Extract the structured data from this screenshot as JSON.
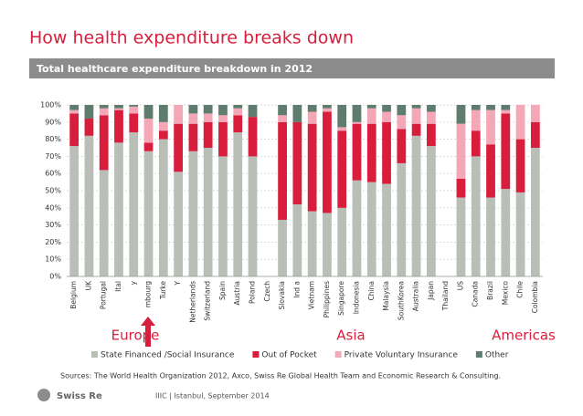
{
  "chart_data": {
    "type": "stacked_bar",
    "title": "How health expenditure breaks down",
    "subtitle": "Total healthcare expenditure breakdown in 2012",
    "categories": [
      "Belgium",
      "UK",
      "Portugal",
      "Ital",
      "y",
      "mbourg",
      "Turke",
      "Y",
      "Netherlands",
      "Switzerland",
      "Spain",
      "Austria",
      "Poland",
      "Czech",
      "Slovakia",
      "Ind a",
      "Vietnam",
      "Philippines",
      "Singapore",
      "Indonesia",
      "China",
      "Malaysia",
      "SouthKorea",
      "Australia",
      "Japan",
      "Thailand",
      "US",
      "Canada",
      "Brazil",
      "Mexico",
      "Chile",
      "Colombia"
    ],
    "series": [
      {
        "name": "State Financed /Social Insurance",
        "color": "#b9bfb7",
        "values": [
          76,
          82,
          62,
          78,
          84,
          73,
          80,
          61,
          73,
          75,
          70,
          84,
          70,
          null,
          33,
          42,
          38,
          37,
          40,
          56,
          55,
          54,
          66,
          82,
          76,
          null,
          46,
          70,
          46,
          51,
          49,
          75
        ]
      },
      {
        "name": "Out of Pocket",
        "color": "#d81e3c",
        "values": [
          19,
          10,
          32,
          19,
          11,
          5,
          5,
          28,
          16,
          15,
          20,
          10,
          23,
          null,
          57,
          48,
          51,
          59,
          45,
          33,
          34,
          36,
          20,
          7,
          13,
          null,
          11,
          15,
          31,
          44,
          31,
          15
        ]
      },
      {
        "name": "Private Voluntary Insurance",
        "color": "#f4a7b6",
        "values": [
          2,
          0,
          4,
          1,
          4,
          14,
          5,
          11,
          6,
          5,
          4,
          4,
          0,
          null,
          4,
          0,
          7,
          2,
          2,
          1,
          9,
          6,
          8,
          9,
          7,
          null,
          32,
          12,
          20,
          2,
          20,
          10
        ]
      },
      {
        "name": "Other",
        "color": "#5f7d6f",
        "values": [
          3,
          8,
          2,
          2,
          1,
          8,
          10,
          0,
          5,
          5,
          6,
          2,
          7,
          null,
          6,
          10,
          4,
          2,
          13,
          10,
          2,
          4,
          6,
          2,
          4,
          null,
          11,
          3,
          3,
          3,
          0,
          0
        ]
      }
    ],
    "ylim": [
      0,
      100
    ],
    "yticks": [
      {
        "value": 0,
        "label": "0%"
      },
      {
        "value": 10,
        "label": "10%"
      },
      {
        "value": 20,
        "label": "20%"
      },
      {
        "value": 30,
        "label": "30%"
      },
      {
        "value": 40,
        "label": "40%"
      },
      {
        "value": 50,
        "label": "50%"
      },
      {
        "value": 60,
        "label": "60%"
      },
      {
        "value": 70,
        "label": "70%"
      },
      {
        "value": 80,
        "label": "80%"
      },
      {
        "value": 90,
        "label": "90%"
      },
      {
        "value": 100,
        "label": "100%"
      }
    ],
    "grid": true,
    "annotations": [
      "Europe",
      "Asia",
      "Americas"
    ],
    "source": "Sources: The World Health Organization 2012, Axco, Swiss Re Global Health Team and Economic Research & Consulting.",
    "footer": "IIIC | Istanbul, September 2014",
    "logo": "Swiss Re"
  }
}
